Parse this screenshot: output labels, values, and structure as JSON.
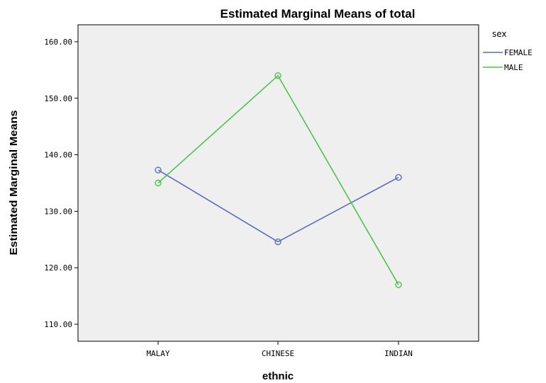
{
  "chart_data": {
    "type": "line",
    "title": "Estimated Marginal Means of total",
    "xlabel": "ethnic",
    "ylabel": "Estimated Marginal Means",
    "categories": [
      "MALAY",
      "CHINESE",
      "INDIAN"
    ],
    "yticks": [
      "110.00",
      "120.00",
      "130.00",
      "140.00",
      "150.00",
      "160.00"
    ],
    "ylim": [
      107,
      163
    ],
    "grid": false,
    "legend_title": "sex",
    "legend_position": "right",
    "series": [
      {
        "name": "FEMALE",
        "color": "#5b6dbf",
        "values": [
          137.3,
          124.6,
          136.0
        ]
      },
      {
        "name": "MALE",
        "color": "#4cc54c",
        "values": [
          135.0,
          154.0,
          117.0
        ]
      }
    ],
    "plot_background": "#efefef"
  }
}
